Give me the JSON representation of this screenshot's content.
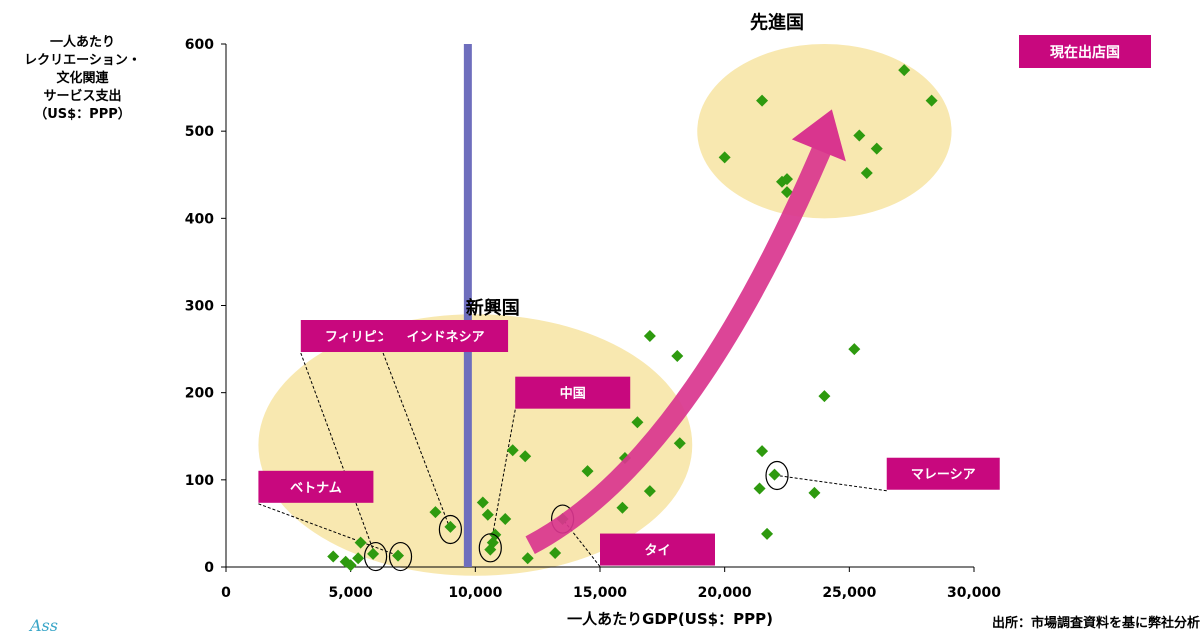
{
  "chart_data": {
    "type": "scatter",
    "ylabel": "一人あたり\nレクリエーション・\n文化関連\nサービス支出\n（US$：PPP）",
    "xlabel": "一人あたりGDP(US$：PPP)",
    "xlim": [
      0,
      30000
    ],
    "ylim": [
      0,
      600
    ],
    "x_ticks": [
      "0",
      "5,000",
      "10,000",
      "15,000",
      "20,000",
      "25,000",
      "30,000"
    ],
    "y_ticks": [
      "0",
      "100",
      "200",
      "300",
      "400",
      "500",
      "600"
    ],
    "reference_line_x": 9700,
    "points": [
      {
        "x": 4300,
        "y": 12
      },
      {
        "x": 4800,
        "y": 6
      },
      {
        "x": 5000,
        "y": 2
      },
      {
        "x": 5300,
        "y": 10
      },
      {
        "x": 5400,
        "y": 28
      },
      {
        "x": 5900,
        "y": 15
      },
      {
        "x": 6900,
        "y": 13
      },
      {
        "x": 8400,
        "y": 63
      },
      {
        "x": 9000,
        "y": 46
      },
      {
        "x": 10300,
        "y": 74
      },
      {
        "x": 10500,
        "y": 60
      },
      {
        "x": 10600,
        "y": 20
      },
      {
        "x": 10700,
        "y": 28
      },
      {
        "x": 10800,
        "y": 37
      },
      {
        "x": 11200,
        "y": 55
      },
      {
        "x": 11500,
        "y": 134
      },
      {
        "x": 12000,
        "y": 127
      },
      {
        "x": 12100,
        "y": 10
      },
      {
        "x": 13200,
        "y": 16
      },
      {
        "x": 13500,
        "y": 55
      },
      {
        "x": 14500,
        "y": 110
      },
      {
        "x": 15900,
        "y": 68
      },
      {
        "x": 16000,
        "y": 125
      },
      {
        "x": 16500,
        "y": 166
      },
      {
        "x": 17000,
        "y": 87
      },
      {
        "x": 17000,
        "y": 265
      },
      {
        "x": 18100,
        "y": 242
      },
      {
        "x": 18200,
        "y": 142
      },
      {
        "x": 20000,
        "y": 470
      },
      {
        "x": 21400,
        "y": 90
      },
      {
        "x": 21500,
        "y": 535
      },
      {
        "x": 21500,
        "y": 133
      },
      {
        "x": 21700,
        "y": 38
      },
      {
        "x": 22000,
        "y": 106
      },
      {
        "x": 22300,
        "y": 442
      },
      {
        "x": 22500,
        "y": 445
      },
      {
        "x": 22500,
        "y": 430
      },
      {
        "x": 23600,
        "y": 85
      },
      {
        "x": 24000,
        "y": 196
      },
      {
        "x": 25200,
        "y": 250
      },
      {
        "x": 25400,
        "y": 495
      },
      {
        "x": 25700,
        "y": 452
      },
      {
        "x": 26100,
        "y": 480
      },
      {
        "x": 27200,
        "y": 570
      },
      {
        "x": 28300,
        "y": 535
      }
    ],
    "circled_points": [
      {
        "x": 6000,
        "y": 12
      },
      {
        "x": 7000,
        "y": 12
      },
      {
        "x": 9000,
        "y": 43
      },
      {
        "x": 10600,
        "y": 22
      },
      {
        "x": 13500,
        "y": 55
      },
      {
        "x": 22100,
        "y": 105
      }
    ],
    "regions": [
      {
        "label": "新興国",
        "cx": 10000,
        "cy": 140,
        "rx": 8700,
        "ry": 150
      },
      {
        "label": "先進国",
        "cx": 24000,
        "cy": 500,
        "rx": 5100,
        "ry": 100
      }
    ],
    "country_labels": [
      {
        "name": "フィリピン",
        "x": 3000,
        "y": 265,
        "target": {
          "x": 6000,
          "y": 12
        }
      },
      {
        "name": "インドネシア",
        "x": 6300,
        "y": 265,
        "target": {
          "x": 9000,
          "y": 43
        }
      },
      {
        "name": "中国",
        "x": 11600,
        "y": 200,
        "target": {
          "x": 10600,
          "y": 22
        }
      },
      {
        "name": "ベトナム",
        "x": 1300,
        "y": 92,
        "target": {
          "x": 7000,
          "y": 12
        }
      },
      {
        "name": "タイ",
        "x": 15000,
        "y": 20,
        "target": {
          "x": 13500,
          "y": 55
        }
      },
      {
        "name": "マレーシア",
        "x": 26500,
        "y": 107,
        "target": {
          "x": 22100,
          "y": 105
        }
      }
    ],
    "trend_arrow": {
      "from": {
        "x": 12200,
        "y": 25
      },
      "mid": {
        "x": 18500,
        "y": 120
      },
      "to": {
        "x": 24300,
        "y": 525
      }
    }
  },
  "legend": {
    "label": "現在出店国"
  },
  "source": "出所：市場調査資料を基に弊社分析",
  "colors": {
    "marker": "#2e9a0f",
    "label_bg": "#c8087e",
    "region": "#f8e8b0",
    "ref_line": "#6e6ebd",
    "arrow": "#d9358e"
  }
}
